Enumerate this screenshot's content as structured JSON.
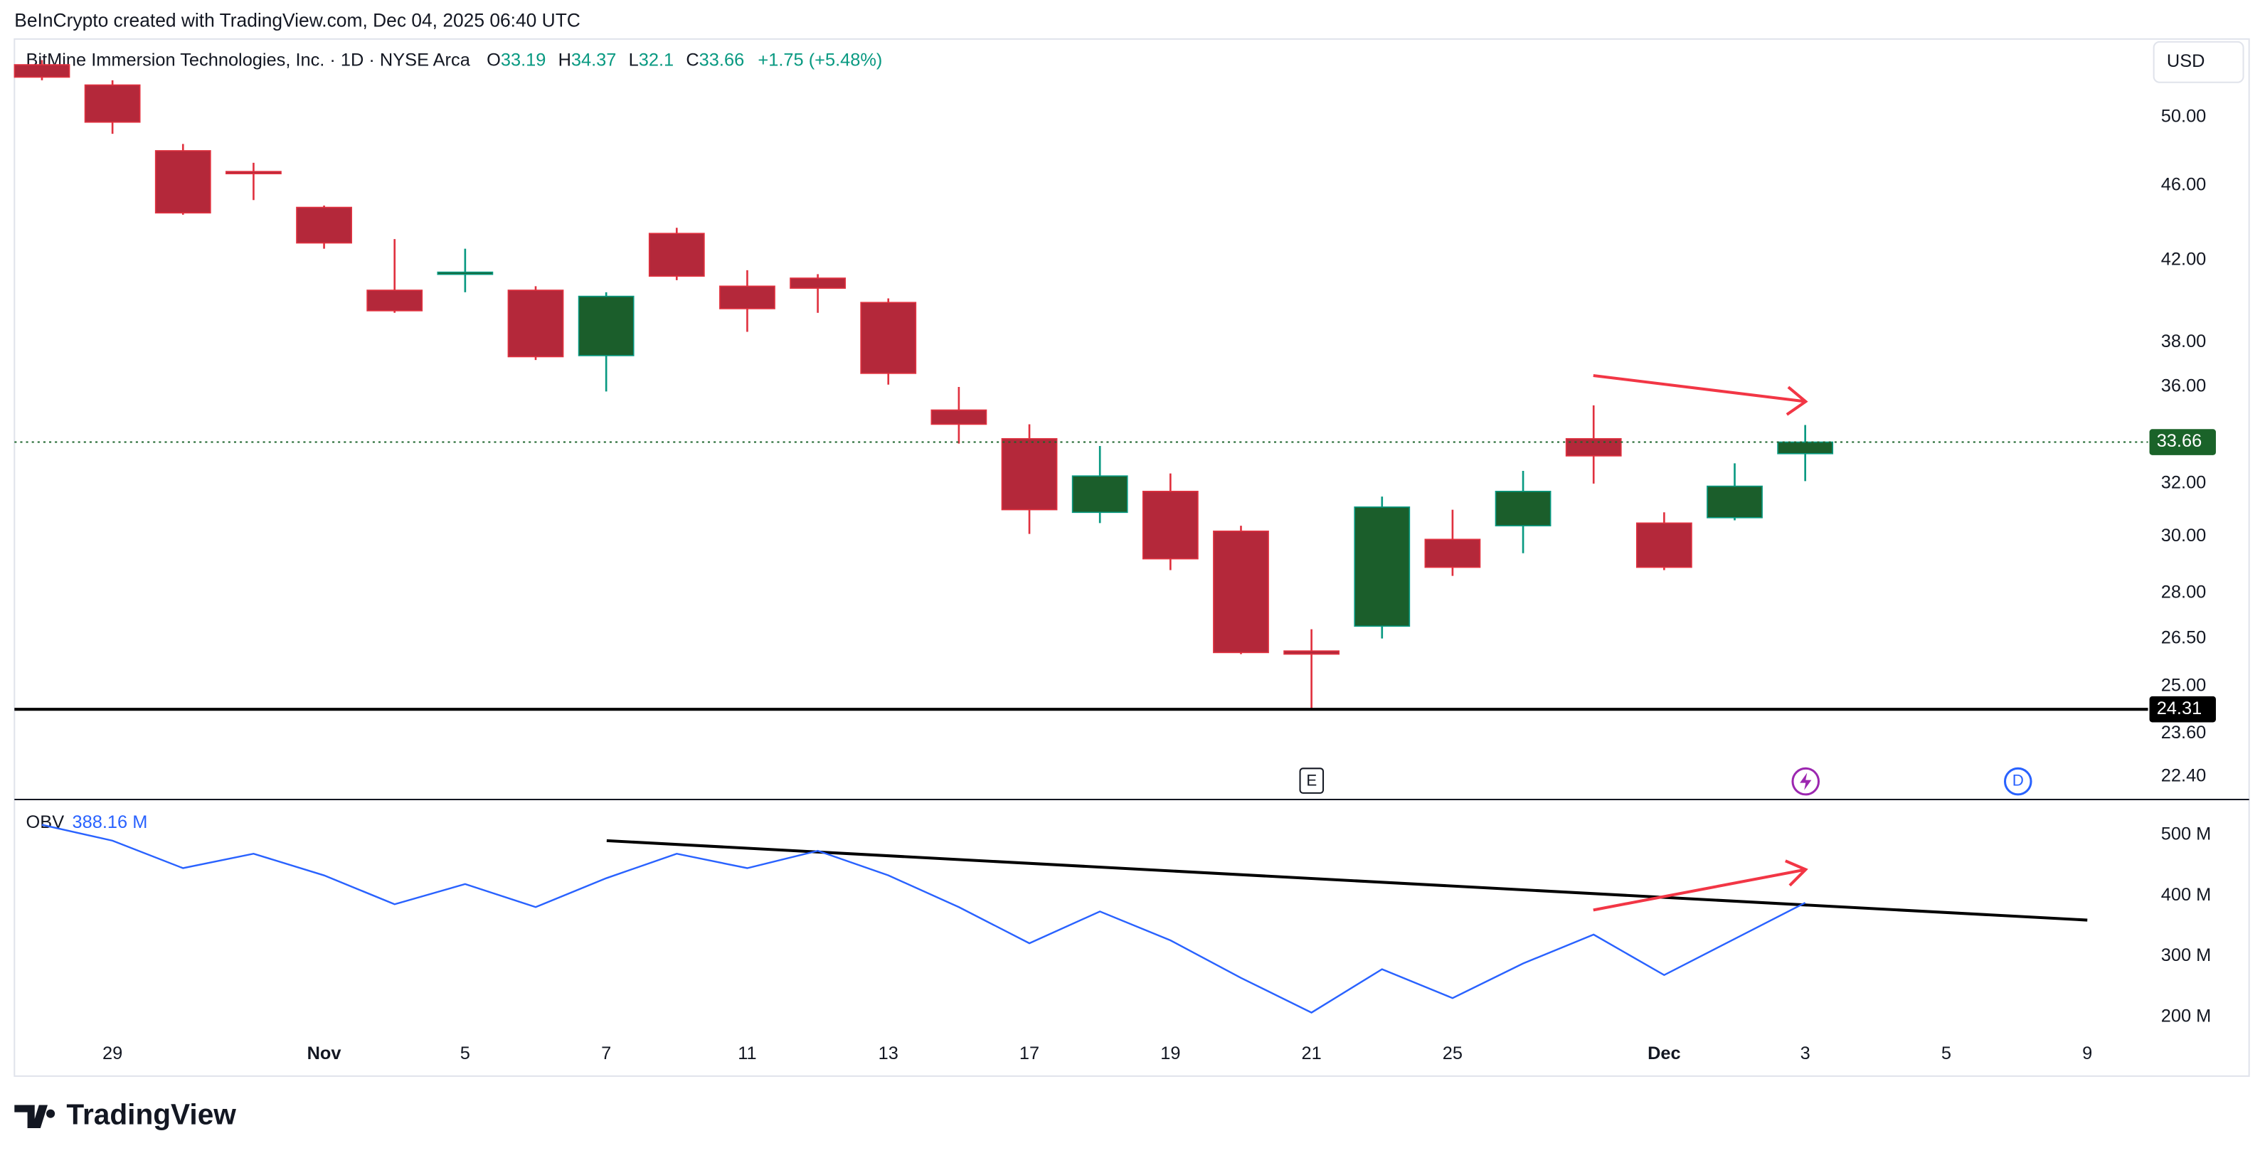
{
  "header": {
    "attribution": "BeInCrypto created with TradingView.com, Dec 04, 2025 06:40 UTC",
    "brand": "TradingView",
    "currency": "USD",
    "events": [
      "E",
      "D"
    ]
  },
  "chart_data": [
    {
      "type": "candlestick",
      "title": "BitMine Immersion Technologies, Inc. · 1D · NYSE Arca",
      "readout_labels": [
        "O",
        "H",
        "L",
        "C"
      ],
      "change_label": "+1.75 (+5.48%)",
      "categories": [
        null,
        "29",
        null,
        null,
        "Nov",
        null,
        "5",
        null,
        "7",
        null,
        "11",
        null,
        "13",
        null,
        "17",
        null,
        "19",
        null,
        "21",
        null,
        "25",
        null,
        null,
        "Dec",
        null,
        "3",
        null,
        "5",
        null,
        "9"
      ],
      "open": [
        53.3,
        52.0,
        48.0,
        46.8,
        44.8,
        40.5,
        41.3,
        40.5,
        37.4,
        43.4,
        40.7,
        41.1,
        39.9,
        35.0,
        33.8,
        30.9,
        31.7,
        30.2,
        26.1,
        26.9,
        29.9,
        30.4,
        33.8,
        30.5,
        30.7,
        33.19,
        null,
        null,
        null,
        null
      ],
      "high": [
        53.6,
        52.3,
        48.4,
        47.3,
        44.9,
        43.1,
        42.6,
        40.7,
        40.4,
        43.7,
        41.5,
        41.3,
        40.1,
        36.0,
        34.4,
        33.5,
        32.4,
        30.4,
        26.8,
        31.5,
        31.0,
        32.5,
        35.2,
        30.9,
        32.8,
        34.37,
        null,
        null,
        null,
        null
      ],
      "low": [
        52.3,
        49.0,
        44.4,
        45.2,
        42.6,
        39.4,
        40.4,
        37.2,
        35.8,
        41.0,
        38.5,
        39.4,
        36.1,
        33.6,
        30.1,
        30.5,
        28.8,
        26.0,
        24.31,
        26.5,
        28.6,
        29.4,
        32.0,
        28.8,
        30.6,
        32.1,
        null,
        null,
        null,
        null
      ],
      "close": [
        52.5,
        49.7,
        44.5,
        46.7,
        42.9,
        39.5,
        41.4,
        37.35,
        40.2,
        41.2,
        39.6,
        40.6,
        36.6,
        34.4,
        31.0,
        32.3,
        29.2,
        26.05,
        26.0,
        31.1,
        28.9,
        31.7,
        33.1,
        28.9,
        31.9,
        33.66,
        null,
        null,
        null,
        null
      ],
      "colors": {
        "up": "#1b5e2b",
        "up_wick": "#089981",
        "down": "#b4283a",
        "down_wick": "#e0313f",
        "last": "#1a6329",
        "support": "#000000"
      },
      "support": 24.31,
      "xlim": [
        -0.39,
        29.86
      ],
      "ylim": [
        21.8,
        54.9
      ],
      "log_scale": true,
      "grid": false,
      "yticks": [
        {
          "value": 50,
          "label": "50.00"
        },
        {
          "value": 46,
          "label": "46.00"
        },
        {
          "value": 42,
          "label": "42.00"
        },
        {
          "value": 38,
          "label": "38.00"
        },
        {
          "value": 36,
          "label": "36.00"
        },
        {
          "value": 32,
          "label": "32.00"
        },
        {
          "value": 30,
          "label": "30.00"
        },
        {
          "value": 28,
          "label": "28.00"
        },
        {
          "value": 26.5,
          "label": "26.50"
        },
        {
          "value": 25,
          "label": "25.00"
        },
        {
          "value": 23.6,
          "label": "23.60"
        },
        {
          "value": 22.4,
          "label": "22.40"
        }
      ]
    },
    {
      "type": "line",
      "title": "OBV",
      "color": "#2962ff",
      "last_value_label": "388.16 M",
      "values": [
        516.7,
        490.5,
        445.2,
        469.0,
        433.3,
        385.7,
        419.0,
        381.0,
        428.6,
        469.0,
        445.2,
        473.8,
        433.3,
        381.0,
        321.4,
        373.8,
        326.2,
        264.3,
        207.1,
        278.6,
        231.0,
        288.1,
        335.7,
        269.0,
        328.6,
        388.16,
        null,
        null,
        null,
        null
      ],
      "ylim": [
        166.7,
        554.8
      ],
      "yticks": [
        {
          "value": 500,
          "label": "500 M"
        },
        {
          "value": 400,
          "label": "400 M"
        },
        {
          "value": 300,
          "label": "300 M"
        },
        {
          "value": 200,
          "label": "200 M"
        }
      ]
    }
  ]
}
